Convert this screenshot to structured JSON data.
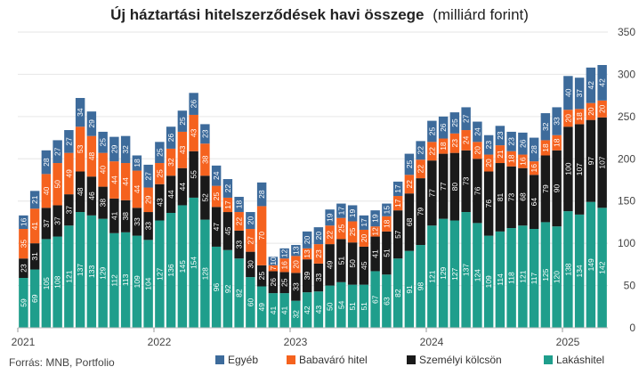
{
  "title_bold": "Új háztartási hitelszerződések havi összege",
  "title_rest": "(milliárd forint)",
  "source": "Forrás: MNB, Portfolio",
  "colors": {
    "lakashitel": "#1f9e8c",
    "szemelyi": "#1a1a1a",
    "babavaro": "#f5621e",
    "egyeb": "#3d6b9b",
    "grid": "#e6e6e6"
  },
  "chart_data": {
    "type": "bar",
    "stacked": true,
    "title": "Új háztartási hitelszerződések havi összege (milliárd forint)",
    "ylim": [
      0,
      350
    ],
    "yticks": [
      0,
      50,
      100,
      150,
      200,
      250,
      300,
      350
    ],
    "y_axis_position": "right",
    "grid": true,
    "legend_position": "bottom",
    "x_tick_labels": [
      {
        "index": 0,
        "label": "2021"
      },
      {
        "index": 12,
        "label": "2022"
      },
      {
        "index": 24,
        "label": "2023"
      },
      {
        "index": 36,
        "label": "2024"
      },
      {
        "index": 48,
        "label": "2025"
      }
    ],
    "series": [
      {
        "name": "Lakáshitel",
        "color": "#1f9e8c",
        "values": [
          59,
          69,
          105,
          108,
          121,
          137,
          133,
          129,
          112,
          113,
          109,
          104,
          127,
          136,
          145,
          154,
          128,
          96,
          92,
          82,
          60,
          49,
          41,
          41,
          32,
          42,
          43,
          50,
          54,
          51,
          51,
          67,
          63,
          82,
          91,
          98,
          121,
          129,
          127,
          137,
          124,
          109,
          114,
          118,
          121,
          117,
          125,
          120,
          138,
          134,
          149,
          142
        ]
      },
      {
        "name": "Személyi kölcsön",
        "color": "#1a1a1a",
        "values": [
          23,
          31,
          37,
          37,
          37,
          48,
          46,
          38,
          41,
          38,
          33,
          33,
          43,
          44,
          44,
          55,
          52,
          47,
          45,
          33,
          30,
          25,
          26,
          25,
          33,
          39,
          33,
          49,
          51,
          50,
          45,
          41,
          51,
          57,
          68,
          79,
          77,
          77,
          80,
          73,
          76,
          76,
          81,
          73,
          68,
          64,
          79,
          90,
          100,
          107,
          97,
          107
        ]
      },
      {
        "name": "Babaváró hitel",
        "color": "#f5621e",
        "values": [
          35,
          41,
          40,
          50,
          49,
          53,
          48,
          40,
          44,
          44,
          44,
          29,
          25,
          32,
          43,
          43,
          38,
          25,
          17,
          22,
          27,
          70,
          7,
          16,
          20,
          13,
          23,
          22,
          25,
          25,
          20,
          12,
          18,
          17,
          22,
          22,
          22,
          18,
          23,
          24,
          20,
          20,
          21,
          18,
          16,
          16,
          18,
          18,
          20,
          18,
          20,
          20
        ]
      },
      {
        "name": "Egyéb",
        "color": "#3d6b9b",
        "values": [
          16,
          21,
          28,
          27,
          27,
          34,
          29,
          25,
          29,
          32,
          18,
          27,
          25,
          26,
          25,
          26,
          23,
          24,
          22,
          18,
          20,
          28,
          10,
          12,
          13,
          20,
          20,
          19,
          17,
          19,
          17,
          19,
          15,
          17,
          25,
          22,
          25,
          26,
          25,
          27,
          24,
          23,
          23,
          23,
          26,
          28,
          32,
          33,
          40,
          37,
          42,
          42
        ]
      }
    ],
    "label_texts": [
      [
        "59",
        "69",
        "105",
        "108",
        "121",
        "137",
        "133",
        "129",
        "112",
        "113",
        "109",
        "104",
        "127",
        "136",
        "145",
        "154",
        "128",
        "96",
        "92",
        "82",
        "60",
        "49",
        "41",
        "41",
        "32",
        "42",
        "43",
        "50",
        "54",
        "51",
        "51",
        "67",
        "63",
        "82",
        "91",
        "98",
        "121",
        "129",
        "127",
        "137",
        "124",
        "109",
        "114",
        "118",
        "121",
        "117",
        "125",
        "120",
        "138",
        "134",
        "149",
        "142"
      ],
      [
        "23",
        "31",
        "37",
        "37",
        "37",
        "48",
        "46",
        "38",
        "41",
        "38",
        "33",
        "33",
        "43",
        "44",
        "44",
        "55",
        "52",
        "47",
        "45",
        "33",
        "30",
        "25",
        "26",
        "25",
        "33",
        "39",
        "33",
        "49",
        "51",
        "50",
        "45",
        "41",
        "51",
        "57",
        "68",
        "79",
        "77",
        "77",
        "80",
        "73",
        "76",
        "76",
        "81",
        "73",
        "68",
        "64",
        "79",
        "90",
        "100",
        "107",
        "97",
        "107"
      ],
      [
        "35",
        "41",
        "40",
        "50",
        "49",
        "53",
        "48",
        "40",
        "44",
        "44",
        "44",
        "29",
        "25",
        "32",
        "43",
        "43",
        "38",
        "25",
        "17",
        "22",
        "27",
        "70",
        "7",
        "16",
        "20",
        "13",
        "23",
        "22",
        "25",
        "25",
        "20",
        "12",
        "18",
        "17",
        "22",
        "22",
        "22",
        "18",
        "23",
        "24",
        "20",
        "20",
        "21",
        "18",
        "16",
        "16",
        "18",
        "18",
        "20",
        "18",
        "20",
        "20"
      ],
      [
        "16",
        "21",
        "28",
        "27",
        "27",
        "34",
        "29",
        "25",
        "29",
        "32",
        "18",
        "27",
        "25",
        "26",
        "25",
        "26",
        "23",
        "24",
        "22",
        "18",
        "20",
        "28",
        "10",
        "12",
        "13",
        "20",
        "20",
        "19",
        "17",
        "19",
        "17",
        "19",
        "15",
        "17",
        "25",
        "22",
        "25",
        "26",
        "25",
        "27",
        "24",
        "23",
        "23",
        "23",
        "26",
        "28",
        "32",
        "33",
        "40",
        "37",
        "42",
        "42"
      ]
    ]
  }
}
